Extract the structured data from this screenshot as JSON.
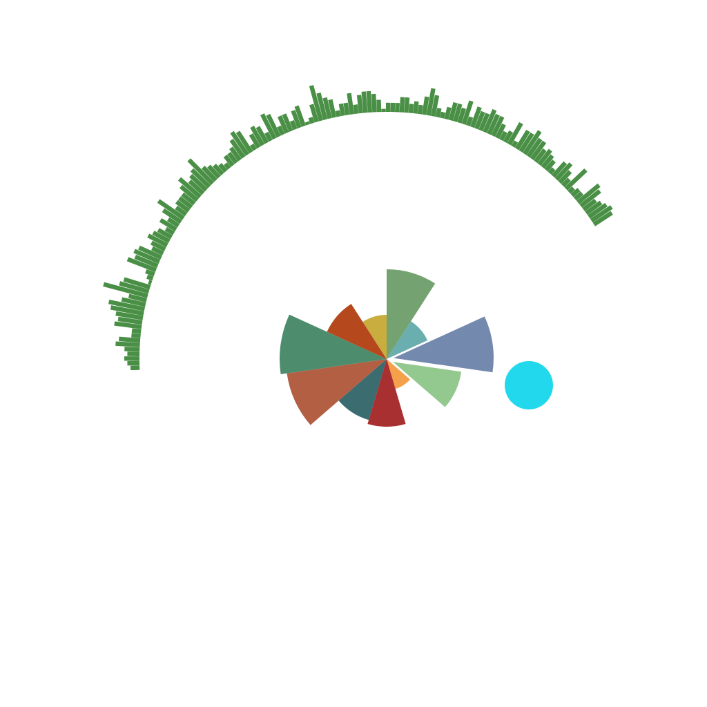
{
  "chart_data": [
    {
      "type": "radial-bar",
      "color": "#4a8f46",
      "angle_range_deg": [
        -92,
        57
      ],
      "values": [
        3,
        4,
        5,
        4,
        5,
        8,
        7,
        3,
        3,
        9,
        8,
        9,
        11,
        12,
        8,
        6,
        15,
        10,
        9,
        1,
        2,
        3,
        10,
        8,
        9,
        8,
        4,
        5,
        7,
        6,
        5,
        3,
        6,
        4,
        7,
        10,
        4,
        5,
        5,
        5,
        7,
        9,
        6,
        7,
        8,
        11,
        6,
        5,
        4,
        3,
        2,
        4,
        4,
        5,
        7,
        9,
        8,
        2,
        5,
        7,
        6,
        3,
        9,
        8,
        3,
        6,
        6,
        3,
        6,
        7,
        1,
        2,
        6,
        12,
        9,
        7,
        6,
        2,
        4,
        4,
        7,
        3,
        6,
        7,
        7,
        6,
        4,
        1,
        3,
        3,
        3,
        5,
        5,
        3,
        4,
        3,
        6,
        9,
        7,
        3,
        2,
        4,
        6,
        6,
        5,
        8,
        3,
        7,
        6,
        6,
        8,
        7,
        7,
        5,
        3,
        4,
        8,
        2,
        7,
        7,
        9,
        7,
        7,
        5,
        6,
        5,
        4,
        2,
        6,
        7,
        5,
        3,
        9,
        2,
        3,
        3,
        9,
        8,
        5,
        6,
        7,
        8,
        7
      ]
    },
    {
      "type": "pie",
      "variant": "rose",
      "slices": [
        {
          "color": "#74a371",
          "value": 130
        },
        {
          "color": "#6aaeb0",
          "value": 65
        },
        {
          "color": "#7489ae",
          "value": 145
        },
        {
          "color": "#93c98e",
          "value": 100
        },
        {
          "color": "#f5a04a",
          "value": 45
        },
        {
          "color": "#a83030",
          "value": 98
        },
        {
          "color": "#3b6c70",
          "value": 92
        },
        {
          "color": "#b35f44",
          "value": 146
        },
        {
          "color": "#4e8c6e",
          "value": 155
        },
        {
          "color": "#b5491d",
          "value": 95
        },
        {
          "color": "#c9ad3e",
          "value": 64
        }
      ]
    },
    {
      "type": "scatter",
      "points": [
        {
          "x": 1,
          "y": 1,
          "color": "#22d8ec"
        }
      ]
    }
  ]
}
